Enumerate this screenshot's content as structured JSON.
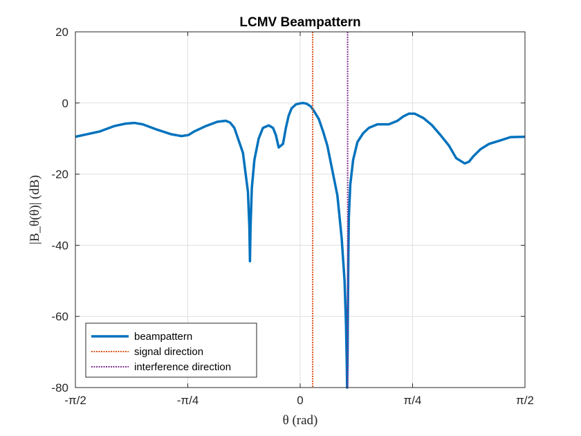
{
  "chart_data": {
    "type": "line",
    "title": "LCMV Beampattern",
    "xlabel": "θ (rad)",
    "ylabel": "|B_θ(θ)| (dB)",
    "xlim": [
      -1.5708,
      1.5708
    ],
    "ylim": [
      -80,
      20
    ],
    "x_ticks": [
      {
        "value": -1.5708,
        "label": "-π/2"
      },
      {
        "value": -0.7854,
        "label": "-π/4"
      },
      {
        "value": 0,
        "label": "0"
      },
      {
        "value": 0.7854,
        "label": "π/4"
      },
      {
        "value": 1.5708,
        "label": "π/2"
      }
    ],
    "y_ticks": [
      {
        "value": 20,
        "label": "20"
      },
      {
        "value": 0,
        "label": "0"
      },
      {
        "value": -20,
        "label": "-20"
      },
      {
        "value": -40,
        "label": "-40"
      },
      {
        "value": -60,
        "label": "-60"
      },
      {
        "value": -80,
        "label": "-80"
      }
    ],
    "grid": true,
    "legend_position": "bottom-left",
    "series": [
      {
        "name": "beampattern",
        "style": "solid",
        "color": "#0072BD",
        "x": [
          -1.5708,
          -1.4,
          -1.3,
          -1.22,
          -1.16,
          -1.1,
          -1.0,
          -0.9,
          -0.83,
          -0.78,
          -0.74,
          -0.66,
          -0.58,
          -0.52,
          -0.49,
          -0.46,
          -0.4,
          -0.365,
          -0.355,
          -0.351,
          -0.347,
          -0.338,
          -0.32,
          -0.29,
          -0.26,
          -0.22,
          -0.19,
          -0.17,
          -0.15,
          -0.12,
          -0.1,
          -0.08,
          -0.06,
          -0.03,
          0,
          0.02,
          0.045,
          0.075,
          0.1,
          0.13,
          0.16,
          0.19,
          0.22,
          0.26,
          0.29,
          0.31,
          0.32,
          0.325,
          0.328,
          0.331,
          0.333,
          0.337,
          0.34,
          0.35,
          0.37,
          0.4,
          0.44,
          0.48,
          0.54,
          0.62,
          0.68,
          0.72,
          0.76,
          0.8,
          0.86,
          0.92,
          0.98,
          1.04,
          1.09,
          1.15,
          1.18,
          1.21,
          1.26,
          1.32,
          1.4,
          1.47,
          1.5708
        ],
        "y": [
          -9.5,
          -8.0,
          -6.5,
          -5.8,
          -5.6,
          -6.0,
          -7.5,
          -8.8,
          -9.3,
          -9.0,
          -8.0,
          -6.5,
          -5.3,
          -5.0,
          -5.5,
          -7.0,
          -14,
          -25,
          -35,
          -44.5,
          -35,
          -24,
          -16,
          -10,
          -7.0,
          -6.3,
          -7.0,
          -9.0,
          -12.5,
          -11.5,
          -7.0,
          -3.5,
          -1.5,
          -0.4,
          -0.1,
          0,
          -0.2,
          -1.0,
          -2.5,
          -4.5,
          -8.0,
          -12,
          -18,
          -26,
          -38,
          -50,
          -62,
          -72,
          -80,
          -72,
          -60,
          -42,
          -32,
          -23,
          -16,
          -11,
          -8.5,
          -7.0,
          -6.0,
          -6.0,
          -5.0,
          -3.8,
          -3.0,
          -3.0,
          -4.2,
          -6.2,
          -9.0,
          -12,
          -15.5,
          -17,
          -16.5,
          -15,
          -13,
          -11.5,
          -10.5,
          -9.6,
          -9.5
        ]
      },
      {
        "name": "signal direction",
        "style": "dotted",
        "color": "#D95319",
        "x_value": 0.0873
      },
      {
        "name": "interference direction",
        "style": "dotted",
        "color": "#7E2F8E",
        "x_value": 0.3316
      }
    ]
  },
  "colors": {
    "axis": "#262626",
    "grid": "#dfdfdf"
  }
}
